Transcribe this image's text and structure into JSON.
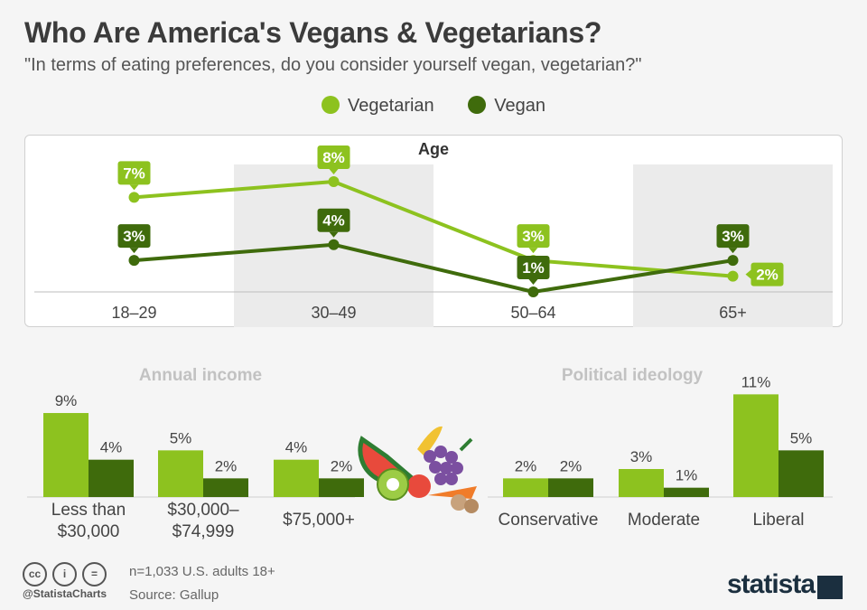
{
  "title": "Who Are America's Vegans & Vegetarians?",
  "subtitle": "\"In terms of eating preferences, do you consider yourself vegan, vegetarian?\"",
  "legend": [
    {
      "label": "Vegetarian",
      "color": "#8dc21f"
    },
    {
      "label": "Vegan",
      "color": "#3f6b0c"
    }
  ],
  "footer": {
    "handle": "@StatistaCharts",
    "note": "n=1,033 U.S. adults 18+",
    "source": "Source: Gallup",
    "brand": "statista",
    "icons": [
      "cc-icon",
      "by-icon",
      "nd-icon"
    ]
  },
  "chart_data": [
    {
      "type": "line",
      "title": "Age",
      "categories": [
        "18–29",
        "30–49",
        "50–64",
        "65+"
      ],
      "series": [
        {
          "name": "Vegetarian",
          "values": [
            7,
            8,
            3,
            2
          ],
          "labels": [
            "7%",
            "8%",
            "3%",
            "2%"
          ]
        },
        {
          "name": "Vegan",
          "values": [
            3,
            4,
            1,
            3
          ],
          "labels": [
            "3%",
            "4%",
            "1%",
            "3%"
          ]
        }
      ]
    },
    {
      "type": "bar",
      "title": "Annual income",
      "categories": [
        "Less than $30,000",
        "$30,000–$74,999",
        "$75,000+"
      ],
      "series": [
        {
          "name": "Vegetarian",
          "values": [
            9,
            5,
            4
          ],
          "labels": [
            "9%",
            "5%",
            "4%"
          ]
        },
        {
          "name": "Vegan",
          "values": [
            4,
            2,
            2
          ],
          "labels": [
            "4%",
            "2%",
            "2%"
          ]
        }
      ]
    },
    {
      "type": "bar",
      "title": "Political ideology",
      "categories": [
        "Conservative",
        "Moderate",
        "Liberal"
      ],
      "series": [
        {
          "name": "Vegetarian",
          "values": [
            2,
            3,
            11
          ],
          "labels": [
            "2%",
            "3%",
            "11%"
          ]
        },
        {
          "name": "Vegan",
          "values": [
            2,
            1,
            5
          ],
          "labels": [
            "2%",
            "1%",
            "5%"
          ]
        }
      ]
    }
  ]
}
